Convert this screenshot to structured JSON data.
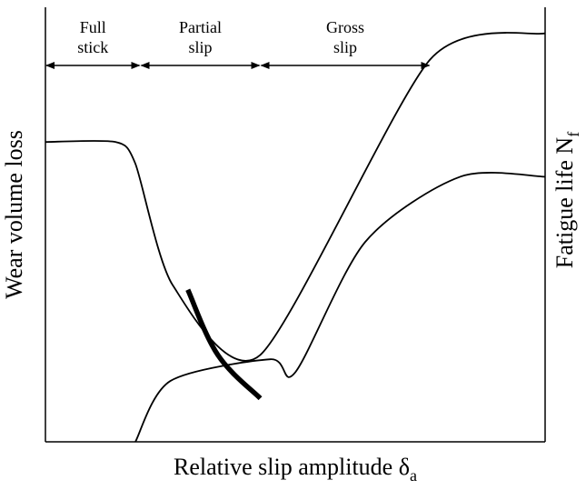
{
  "chart_data": {
    "type": "line",
    "title": "",
    "xlabel": "Relative slip amplitude δa",
    "xlabel_main": "Relative slip amplitude δ",
    "xlabel_sub": "a",
    "ylabel_left": "Wear volume loss",
    "ylabel_right_main": "Fatigue life N",
    "ylabel_right_sub": "f",
    "grid": false,
    "ticks": false,
    "regimes": [
      {
        "name": "full-stick",
        "line1": "Full",
        "line2": "stick",
        "x_start": 0.0,
        "x_end": 0.19
      },
      {
        "name": "partial-slip",
        "line1": "Partial",
        "line2": "slip",
        "x_start": 0.19,
        "x_end": 0.43
      },
      {
        "name": "gross-slip",
        "line1": "Gross",
        "line2": "slip",
        "x_start": 0.43,
        "x_end": 0.77
      }
    ],
    "series": [
      {
        "id": "wear",
        "points": [
          [
            0.0,
            0.69
          ],
          [
            0.14,
            0.69
          ],
          [
            0.18,
            0.64
          ],
          [
            0.255,
            0.36
          ],
          [
            0.43,
            0.2
          ],
          [
            0.77,
            0.88
          ],
          [
            1.0,
            0.94
          ]
        ]
      },
      {
        "id": "fatigue",
        "points": [
          [
            0.18,
            0.0
          ],
          [
            0.25,
            0.14
          ],
          [
            0.45,
            0.19
          ],
          [
            0.5,
            0.16
          ],
          [
            0.64,
            0.46
          ],
          [
            0.83,
            0.61
          ],
          [
            1.0,
            0.61
          ]
        ]
      },
      {
        "id": "transition-highlight",
        "points": [
          [
            0.285,
            0.35
          ],
          [
            0.345,
            0.2
          ],
          [
            0.43,
            0.1
          ]
        ]
      }
    ]
  }
}
